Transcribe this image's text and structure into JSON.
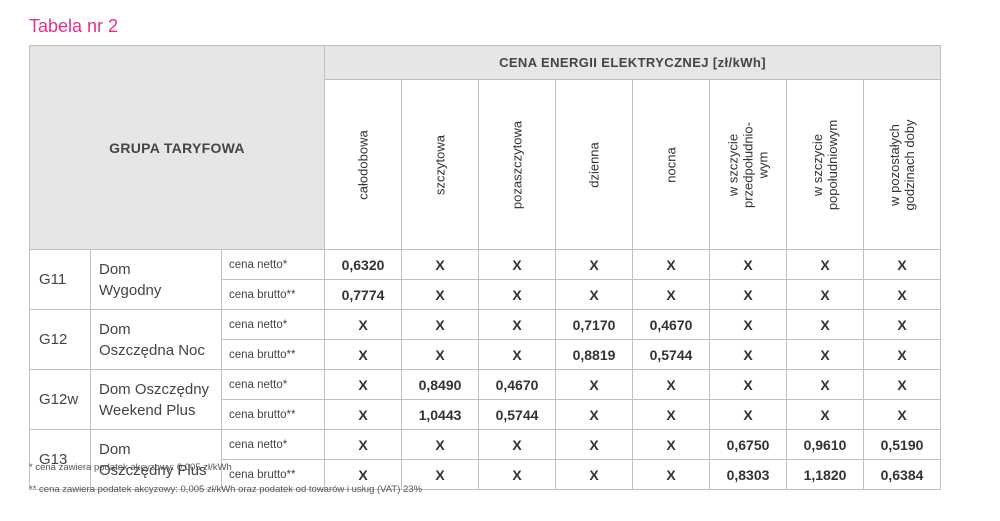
{
  "title": "Tabela nr 2",
  "header": {
    "group": "GRUPA TARYFOWA",
    "price": "CENA ENERGII ELEKTRYCZNEJ [zł/kWh]",
    "columns": [
      "całodobowa",
      "szczytowa",
      "pozaszczytowa",
      "dzienna",
      "nocna",
      "w szczycie\nprzedpołudnio-\nwym",
      "w szczycie\npopołudniowym",
      "w pozostałych\ngodzinach doby"
    ]
  },
  "groups": [
    {
      "code": "G11",
      "name": "Dom\nWygodny",
      "rows": [
        {
          "label": "cena netto*",
          "values": [
            "0,6320",
            "X",
            "X",
            "X",
            "X",
            "X",
            "X",
            "X"
          ]
        },
        {
          "label": "cena brutto**",
          "values": [
            "0,7774",
            "X",
            "X",
            "X",
            "X",
            "X",
            "X",
            "X"
          ]
        }
      ]
    },
    {
      "code": "G12",
      "name": "Dom\nOszczędna Noc",
      "rows": [
        {
          "label": "cena netto*",
          "values": [
            "X",
            "X",
            "X",
            "0,7170",
            "0,4670",
            "X",
            "X",
            "X"
          ]
        },
        {
          "label": "cena brutto**",
          "values": [
            "X",
            "X",
            "X",
            "0,8819",
            "0,5744",
            "X",
            "X",
            "X"
          ]
        }
      ]
    },
    {
      "code": "G12w",
      "name": "Dom Oszczędny\nWeekend Plus",
      "rows": [
        {
          "label": "cena netto*",
          "values": [
            "X",
            "0,8490",
            "0,4670",
            "X",
            "X",
            "X",
            "X",
            "X"
          ]
        },
        {
          "label": "cena brutto**",
          "values": [
            "X",
            "1,0443",
            "0,5744",
            "X",
            "X",
            "X",
            "X",
            "X"
          ]
        }
      ]
    },
    {
      "code": "G13",
      "name": "Dom\nOszczędny Plus",
      "rows": [
        {
          "label": "cena netto*",
          "values": [
            "X",
            "X",
            "X",
            "X",
            "X",
            "0,6750",
            "0,9610",
            "0,5190"
          ]
        },
        {
          "label": "cena brutto**",
          "values": [
            "X",
            "X",
            "X",
            "X",
            "X",
            "0,8303",
            "1,1820",
            "0,6384"
          ]
        }
      ]
    }
  ],
  "footnotes": [
    "* cena zawiera podatek akcyzowy: 0,005 zł/kWh",
    "** cena zawiera podatek akcyzowy: 0,005 zł/kWh oraz podatek od towarów i usług (VAT) 23%"
  ],
  "colors": {
    "title": "#e6308a",
    "header_bg": "#e6e6e6",
    "border": "#bfbfbf"
  }
}
